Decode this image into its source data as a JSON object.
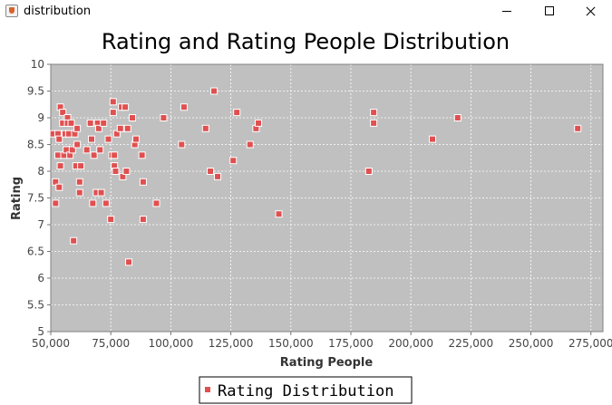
{
  "window": {
    "title": "distribution",
    "app_icon": "java-coffee-cup-icon",
    "controls": [
      "minimize-icon",
      "maximize-icon",
      "close-icon"
    ]
  },
  "colors": {
    "plot_background": "#c0c0c0",
    "gridline": "#ffffff",
    "point_fill": "#e05050",
    "point_stroke": "#ffffff"
  },
  "chart_data": {
    "type": "scatter",
    "title": "Rating and Rating People Distribution",
    "xlabel": "Rating People",
    "ylabel": "Rating",
    "xlim": [
      50000,
      280000
    ],
    "ylim": [
      5,
      10
    ],
    "xticks": [
      50000,
      75000,
      100000,
      125000,
      150000,
      175000,
      200000,
      225000,
      250000,
      275000
    ],
    "xtick_labels": [
      "50,000",
      "75,000",
      "100,000",
      "125,000",
      "150,000",
      "175,000",
      "200,000",
      "225,000",
      "250,000",
      "275,000"
    ],
    "yticks": [
      5,
      5.5,
      6,
      6.5,
      7,
      7.5,
      8,
      8.5,
      9,
      9.5,
      10
    ],
    "ytick_labels": [
      "5",
      "5.5",
      "6",
      "6.5",
      "7",
      "7.5",
      "8",
      "8.5",
      "9",
      "9.5",
      "10"
    ],
    "grid": true,
    "legend_position": "bottom-center",
    "series": [
      {
        "name": "Rating Distribution",
        "points": [
          [
            51000,
            8.7
          ],
          [
            52000,
            7.8
          ],
          [
            52000,
            7.4
          ],
          [
            53000,
            8.3
          ],
          [
            53000,
            8.7
          ],
          [
            53500,
            8.6
          ],
          [
            53500,
            7.7
          ],
          [
            54000,
            8.1
          ],
          [
            54000,
            9.2
          ],
          [
            55000,
            9.1
          ],
          [
            55000,
            8.9
          ],
          [
            55500,
            8.3
          ],
          [
            56000,
            8.7
          ],
          [
            56500,
            8.4
          ],
          [
            57000,
            9.0
          ],
          [
            57000,
            8.9
          ],
          [
            57500,
            8.7
          ],
          [
            58000,
            8.3
          ],
          [
            58500,
            8.9
          ],
          [
            59000,
            8.4
          ],
          [
            59500,
            6.7
          ],
          [
            60000,
            8.7
          ],
          [
            60500,
            8.1
          ],
          [
            61000,
            8.8
          ],
          [
            61000,
            8.5
          ],
          [
            62000,
            7.8
          ],
          [
            62000,
            7.6
          ],
          [
            62500,
            8.1
          ],
          [
            65000,
            8.4
          ],
          [
            66500,
            8.9
          ],
          [
            67000,
            8.6
          ],
          [
            67500,
            7.4
          ],
          [
            68000,
            8.3
          ],
          [
            69000,
            7.6
          ],
          [
            69500,
            8.9
          ],
          [
            70000,
            8.8
          ],
          [
            70500,
            8.4
          ],
          [
            71000,
            7.6
          ],
          [
            72000,
            8.9
          ],
          [
            73000,
            7.4
          ],
          [
            74000,
            8.6
          ],
          [
            75000,
            7.1
          ],
          [
            75500,
            8.3
          ],
          [
            76000,
            9.3
          ],
          [
            76000,
            9.1
          ],
          [
            76500,
            8.1
          ],
          [
            76500,
            8.3
          ],
          [
            77000,
            8.0
          ],
          [
            77500,
            8.7
          ],
          [
            79000,
            8.8
          ],
          [
            79500,
            9.2
          ],
          [
            80000,
            7.9
          ],
          [
            81000,
            9.2
          ],
          [
            81500,
            8.0
          ],
          [
            82000,
            8.8
          ],
          [
            82500,
            6.3
          ],
          [
            84000,
            9.0
          ],
          [
            85000,
            8.5
          ],
          [
            85500,
            8.6
          ],
          [
            88000,
            8.3
          ],
          [
            88500,
            7.8
          ],
          [
            88500,
            7.1
          ],
          [
            94000,
            7.4
          ],
          [
            97000,
            9.0
          ],
          [
            104500,
            8.5
          ],
          [
            105500,
            9.2
          ],
          [
            114500,
            8.8
          ],
          [
            116500,
            8.0
          ],
          [
            118000,
            9.5
          ],
          [
            119500,
            7.9
          ],
          [
            126000,
            8.2
          ],
          [
            127500,
            9.1
          ],
          [
            133000,
            8.5
          ],
          [
            135500,
            8.8
          ],
          [
            136500,
            8.9
          ],
          [
            145000,
            7.2
          ],
          [
            182500,
            8.0
          ],
          [
            184500,
            9.1
          ],
          [
            184500,
            8.9
          ],
          [
            209000,
            8.6
          ],
          [
            219500,
            9.0
          ],
          [
            269500,
            8.8
          ]
        ]
      }
    ]
  }
}
